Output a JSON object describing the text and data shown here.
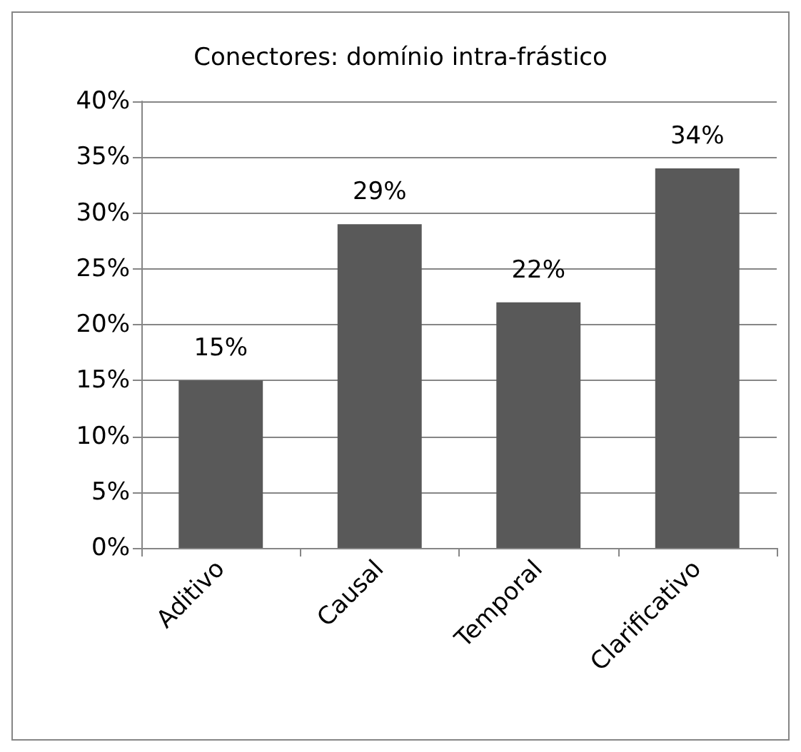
{
  "chart_data": {
    "type": "bar",
    "title": "Conectores: domínio intra-frástico",
    "categories": [
      "Aditivo",
      "Causal",
      "Temporal",
      "Clarificativo"
    ],
    "values": [
      15,
      29,
      22,
      34
    ],
    "color": "#595959",
    "value_labels": [
      "15%",
      "29%",
      "22%",
      "34%"
    ],
    "ylim": [
      0,
      40
    ],
    "yticks": [
      {
        "value": 0,
        "label": "0%"
      },
      {
        "value": 5,
        "label": "5%"
      },
      {
        "value": 10,
        "label": "10%"
      },
      {
        "value": 15,
        "label": "15%"
      },
      {
        "value": 20,
        "label": "20%"
      },
      {
        "value": 25,
        "label": "25%"
      },
      {
        "value": 30,
        "label": "30%"
      },
      {
        "value": 35,
        "label": "35%"
      },
      {
        "value": 40,
        "label": "40%"
      }
    ],
    "grid": "y"
  }
}
